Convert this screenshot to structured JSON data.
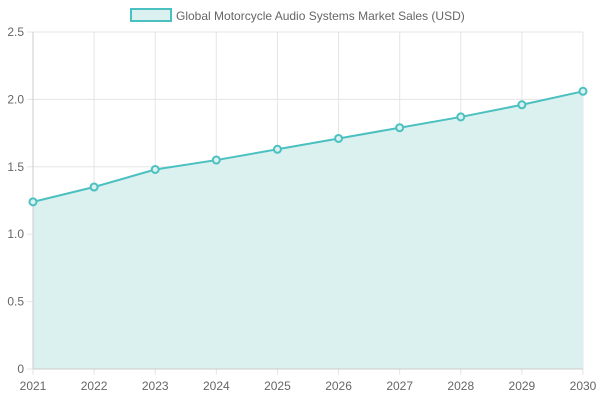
{
  "chart_data": {
    "type": "area",
    "legend": {
      "position": "top",
      "label": "Global Motorcycle Audio Systems Market Sales (USD)"
    },
    "x": [
      "2021",
      "2022",
      "2023",
      "2024",
      "2025",
      "2026",
      "2027",
      "2028",
      "2029",
      "2030"
    ],
    "series": [
      {
        "name": "Global Motorcycle Audio Systems Market Sales (USD)",
        "values": [
          1.24,
          1.35,
          1.48,
          1.55,
          1.63,
          1.71,
          1.79,
          1.87,
          1.96,
          2.06
        ],
        "color": "#4bc0c0",
        "fill_color": "#daf1ef"
      }
    ],
    "ylim": [
      0,
      2.5
    ],
    "y_ticks": [
      "0",
      "0.5",
      "1.0",
      "1.5",
      "2.0",
      "2.5"
    ],
    "grid": true,
    "grid_color": "#e5e5e5"
  }
}
